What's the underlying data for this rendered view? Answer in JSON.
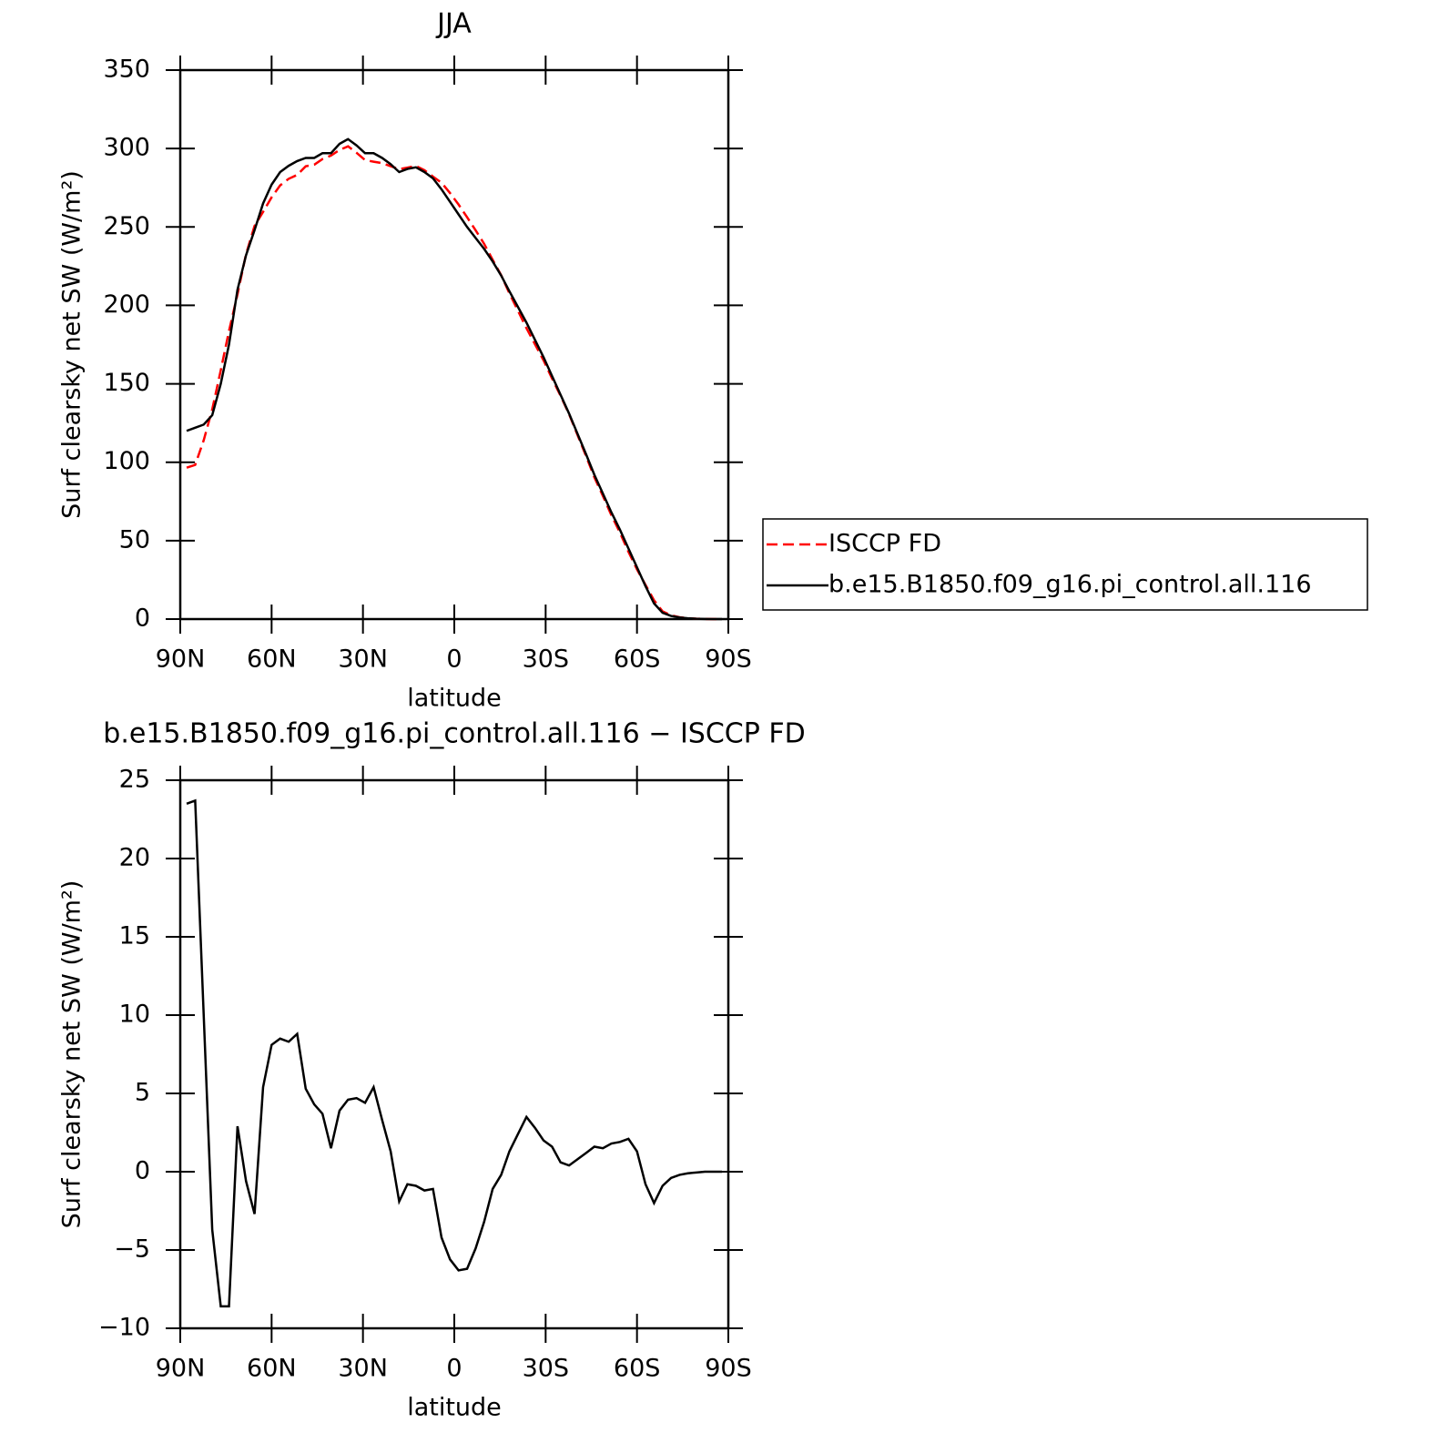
{
  "chart_data": [
    {
      "type": "line",
      "title": "JJA",
      "xlabel": "latitude",
      "ylabel": "Surf clearsky net SW (W/m²)",
      "x": [
        87.9,
        85.1,
        82.3,
        79.5,
        76.7,
        74.0,
        71.2,
        68.4,
        65.6,
        62.8,
        60.0,
        57.2,
        54.4,
        51.6,
        48.8,
        46.0,
        43.3,
        40.5,
        37.7,
        34.9,
        32.1,
        29.3,
        26.5,
        23.7,
        20.9,
        18.1,
        15.4,
        12.6,
        9.8,
        7.0,
        4.2,
        1.4,
        -1.4,
        -4.2,
        -7.0,
        -9.8,
        -12.6,
        -15.4,
        -18.1,
        -20.9,
        -23.7,
        -26.5,
        -29.3,
        -32.1,
        -34.9,
        -37.7,
        -40.5,
        -43.3,
        -46.0,
        -48.8,
        -51.6,
        -54.4,
        -57.2,
        -60.0,
        -62.8,
        -65.6,
        -68.4,
        -71.2,
        -74.0,
        -76.7,
        -79.5,
        -82.3,
        -85.1,
        -87.9
      ],
      "series": [
        {
          "name": "ISCCP FD",
          "color": "#ff0000",
          "style": "dashed",
          "values": [
            96.5,
            98.3,
            114,
            133.7,
            158.6,
            183.6,
            207.1,
            232.6,
            250.7,
            259.6,
            268.9,
            276.5,
            280.7,
            283.2,
            288.7,
            289.7,
            293.3,
            295.5,
            299.1,
            301.4,
            297.3,
            292.6,
            291.6,
            290.7,
            288.7,
            286.9,
            287.8,
            288.9,
            286.2,
            282.1,
            278.2,
            271.6,
            264.3,
            256.2,
            247.9,
            239.2,
            229.1,
            219.2,
            207.7,
            196.6,
            185.5,
            175.2,
            165,
            153.4,
            142.4,
            130.6,
            117.2,
            103.8,
            90.4,
            78.5,
            66.2,
            55.1,
            42.9,
            31.7,
            21.8,
            12,
            4.9,
            2.4,
            1.2,
            0.6,
            0.25,
            0.1,
            0,
            0
          ]
        },
        {
          "name": "b.e15.B1850.f09_g16.pi_control.all.116",
          "color": "#000000",
          "style": "solid",
          "values": [
            120,
            122,
            124,
            130,
            150,
            175,
            210,
            232,
            248,
            265,
            277,
            285,
            289,
            292,
            294,
            294,
            297,
            297,
            303,
            306,
            302,
            297,
            297,
            294,
            290,
            285,
            287,
            288,
            285,
            281,
            274,
            266,
            258,
            250,
            243,
            236,
            228,
            219,
            209,
            199,
            189,
            178,
            167,
            155,
            143,
            131,
            118,
            105,
            92,
            80,
            68,
            57,
            45,
            33,
            21,
            10,
            4,
            2,
            1,
            0.5,
            0.2,
            0.1,
            0,
            0
          ]
        }
      ],
      "xlim": [
        90,
        -90
      ],
      "xticks": [
        {
          "value": 90,
          "label": "90N"
        },
        {
          "value": 60,
          "label": "60N"
        },
        {
          "value": 30,
          "label": "30N"
        },
        0,
        {
          "value": -30,
          "label": "30S"
        },
        {
          "value": -60,
          "label": "60S"
        },
        {
          "value": -90,
          "label": "90S"
        }
      ],
      "ylim": [
        0,
        350
      ],
      "yticks": [
        0,
        50,
        100,
        150,
        200,
        250,
        300,
        350
      ],
      "legend": "outside right"
    },
    {
      "type": "line",
      "title": "b.e15.B1850.f09_g16.pi_control.all.116 − ISCCP FD",
      "xlabel": "latitude",
      "ylabel": "Surf clearsky net SW (W/m²)",
      "x": [
        87.9,
        85.1,
        82.3,
        79.5,
        76.7,
        74.0,
        71.2,
        68.4,
        65.6,
        62.8,
        60.0,
        57.2,
        54.4,
        51.6,
        48.8,
        46.0,
        43.3,
        40.5,
        37.7,
        34.9,
        32.1,
        29.3,
        26.5,
        23.7,
        20.9,
        18.1,
        15.4,
        12.6,
        9.8,
        7.0,
        4.2,
        1.4,
        -1.4,
        -4.2,
        -7.0,
        -9.8,
        -12.6,
        -15.4,
        -18.1,
        -20.9,
        -23.7,
        -26.5,
        -29.3,
        -32.1,
        -34.9,
        -37.7,
        -40.5,
        -43.3,
        -46.0,
        -48.8,
        -51.6,
        -54.4,
        -57.2,
        -60.0,
        -62.8,
        -65.6,
        -68.4,
        -71.2,
        -74.0,
        -76.7,
        -79.5,
        -82.3,
        -85.1,
        -87.9
      ],
      "series": [
        {
          "color": "#000000",
          "style": "solid",
          "values": [
            23.5,
            23.7,
            10.0,
            -3.7,
            -8.6,
            -8.6,
            2.9,
            -0.6,
            -2.7,
            5.4,
            8.1,
            8.5,
            8.3,
            8.8,
            5.3,
            4.3,
            3.7,
            1.5,
            3.9,
            4.6,
            4.7,
            4.4,
            5.4,
            3.3,
            1.3,
            -1.9,
            -0.8,
            -0.9,
            -1.2,
            -1.1,
            -4.2,
            -5.6,
            -6.3,
            -6.2,
            -4.9,
            -3.2,
            -1.1,
            -0.2,
            1.3,
            2.4,
            3.5,
            2.8,
            2.0,
            1.6,
            0.6,
            0.4,
            0.8,
            1.2,
            1.6,
            1.5,
            1.8,
            1.9,
            2.1,
            1.3,
            -0.8,
            -2.0,
            -0.9,
            -0.4,
            -0.2,
            -0.1,
            -0.05,
            0,
            0,
            0
          ]
        }
      ],
      "xlim": [
        90,
        -90
      ],
      "xticks": [
        {
          "value": 90,
          "label": "90N"
        },
        {
          "value": 60,
          "label": "60N"
        },
        {
          "value": 30,
          "label": "30N"
        },
        0,
        {
          "value": -30,
          "label": "30S"
        },
        {
          "value": -60,
          "label": "60S"
        },
        {
          "value": -90,
          "label": "90S"
        }
      ],
      "ylim": [
        -10,
        25
      ],
      "yticks": [
        {
          "value": -10,
          "label": "−10"
        },
        {
          "value": -5,
          "label": "−5"
        },
        0,
        5,
        10,
        15,
        20,
        25
      ]
    }
  ]
}
